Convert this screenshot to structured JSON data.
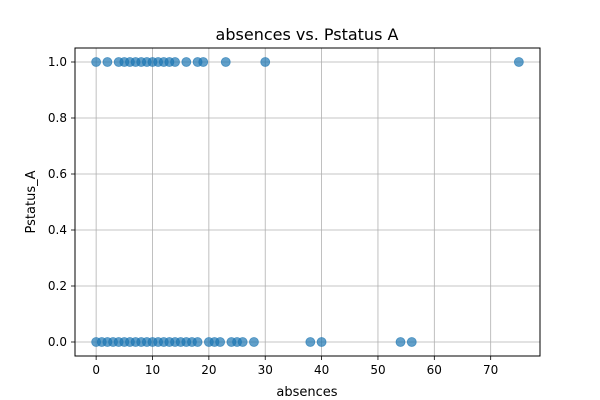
{
  "chart_data": {
    "type": "scatter",
    "title": "absences vs. Pstatus A",
    "xlabel": "absences",
    "ylabel": "Pstatus_A",
    "xlim": [
      -3.75,
      78.75
    ],
    "ylim": [
      -0.05,
      1.05
    ],
    "xticks": [
      0,
      10,
      20,
      30,
      40,
      50,
      60,
      70
    ],
    "xtick_labels": [
      "0",
      "10",
      "20",
      "30",
      "40",
      "50",
      "60",
      "70"
    ],
    "yticks": [
      0.0,
      0.2,
      0.4,
      0.6,
      0.8,
      1.0
    ],
    "ytick_labels": [
      "0.0",
      "0.2",
      "0.4",
      "0.6",
      "0.8",
      "1.0"
    ],
    "grid": true,
    "marker_color": "#1f77b4",
    "marker_alpha": 0.7,
    "points": [
      {
        "x": 0,
        "y": 1
      },
      {
        "x": 2,
        "y": 1
      },
      {
        "x": 4,
        "y": 1
      },
      {
        "x": 5,
        "y": 1
      },
      {
        "x": 6,
        "y": 1
      },
      {
        "x": 7,
        "y": 1
      },
      {
        "x": 8,
        "y": 1
      },
      {
        "x": 9,
        "y": 1
      },
      {
        "x": 10,
        "y": 1
      },
      {
        "x": 11,
        "y": 1
      },
      {
        "x": 12,
        "y": 1
      },
      {
        "x": 13,
        "y": 1
      },
      {
        "x": 14,
        "y": 1
      },
      {
        "x": 16,
        "y": 1
      },
      {
        "x": 18,
        "y": 1
      },
      {
        "x": 19,
        "y": 1
      },
      {
        "x": 23,
        "y": 1
      },
      {
        "x": 30,
        "y": 1
      },
      {
        "x": 75,
        "y": 1
      },
      {
        "x": 0,
        "y": 0
      },
      {
        "x": 1,
        "y": 0
      },
      {
        "x": 2,
        "y": 0
      },
      {
        "x": 3,
        "y": 0
      },
      {
        "x": 4,
        "y": 0
      },
      {
        "x": 5,
        "y": 0
      },
      {
        "x": 6,
        "y": 0
      },
      {
        "x": 7,
        "y": 0
      },
      {
        "x": 8,
        "y": 0
      },
      {
        "x": 9,
        "y": 0
      },
      {
        "x": 10,
        "y": 0
      },
      {
        "x": 11,
        "y": 0
      },
      {
        "x": 12,
        "y": 0
      },
      {
        "x": 13,
        "y": 0
      },
      {
        "x": 14,
        "y": 0
      },
      {
        "x": 15,
        "y": 0
      },
      {
        "x": 16,
        "y": 0
      },
      {
        "x": 17,
        "y": 0
      },
      {
        "x": 18,
        "y": 0
      },
      {
        "x": 20,
        "y": 0
      },
      {
        "x": 21,
        "y": 0
      },
      {
        "x": 22,
        "y": 0
      },
      {
        "x": 24,
        "y": 0
      },
      {
        "x": 25,
        "y": 0
      },
      {
        "x": 26,
        "y": 0
      },
      {
        "x": 28,
        "y": 0
      },
      {
        "x": 38,
        "y": 0
      },
      {
        "x": 40,
        "y": 0
      },
      {
        "x": 54,
        "y": 0
      },
      {
        "x": 56,
        "y": 0
      }
    ]
  }
}
